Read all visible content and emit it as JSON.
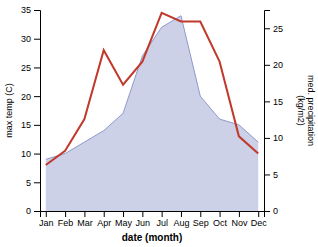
{
  "chart_data": {
    "type": "line",
    "categories": [
      "Jan",
      "Feb",
      "Mar",
      "Apr",
      "May",
      "Jun",
      "Jul",
      "Aug",
      "Sep",
      "Oct",
      "Nov",
      "Dec"
    ],
    "series": [
      {
        "type": "area",
        "color": "#9099cc",
        "values": [
          9,
          10,
          12,
          14,
          17,
          27,
          32,
          34,
          20,
          16,
          15,
          12
        ]
      },
      {
        "type": "line",
        "color": "#c0392b",
        "values": [
          8,
          10.5,
          16,
          28,
          22,
          26,
          34.5,
          33,
          33,
          26,
          13,
          10
        ]
      }
    ],
    "ylim": [
      0,
      35
    ],
    "yticks": [
      0,
      5,
      10,
      15,
      20,
      25,
      30,
      35
    ],
    "y2lim": [
      0,
      27.5
    ],
    "y2ticks": [
      0,
      5,
      10,
      15,
      20,
      25
    ],
    "x_label": "date (month)",
    "y_label": "max temp (C)",
    "y2_label": "med. precipitation\n(kg/m2)",
    "grid": false
  }
}
